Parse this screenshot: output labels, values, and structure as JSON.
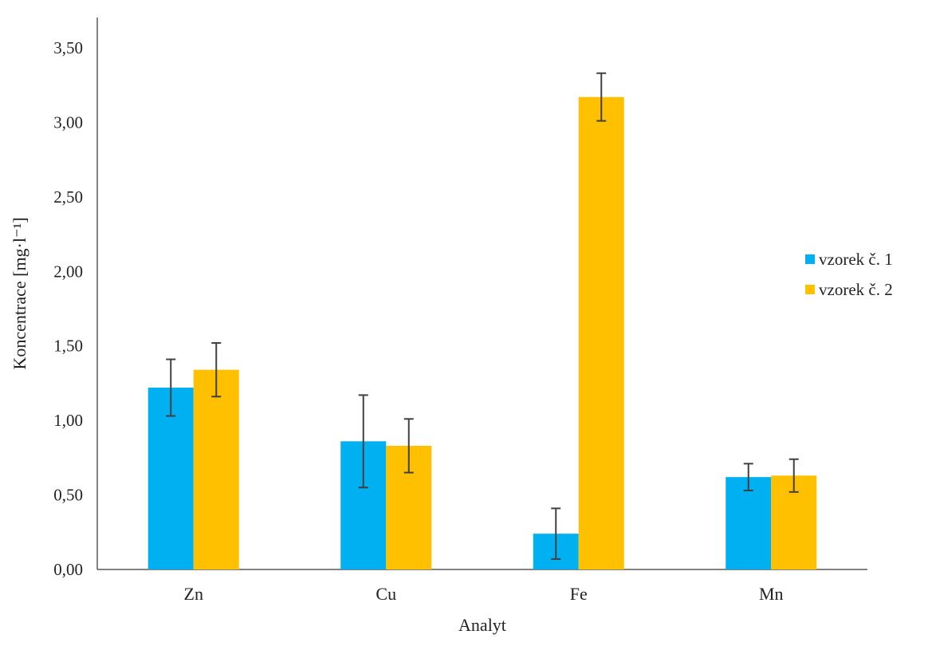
{
  "chart_data": {
    "type": "bar",
    "categories": [
      "Zn",
      "Cu",
      "Fe",
      "Mn"
    ],
    "series": [
      {
        "name": "vzorek č. 1",
        "color": "#00B0F0",
        "values": [
          1.22,
          0.86,
          0.24,
          0.62
        ],
        "errors": [
          0.19,
          0.31,
          0.17,
          0.09
        ]
      },
      {
        "name": "vzorek č. 2",
        "color": "#FFC000",
        "values": [
          1.34,
          0.83,
          3.17,
          0.63
        ],
        "errors": [
          0.18,
          0.18,
          0.16,
          0.11
        ]
      }
    ],
    "title": "",
    "xlabel": "Analyt",
    "ylabel": "Koncentrace [mg·l⁻¹]",
    "ylim": [
      0,
      3.5
    ],
    "yticks": [
      "0,00",
      "0,50",
      "1,00",
      "1,50",
      "2,00",
      "2,50",
      "3,00",
      "3,50"
    ],
    "grid": false,
    "legend_position": "right",
    "error_bar_color": "#404040"
  }
}
